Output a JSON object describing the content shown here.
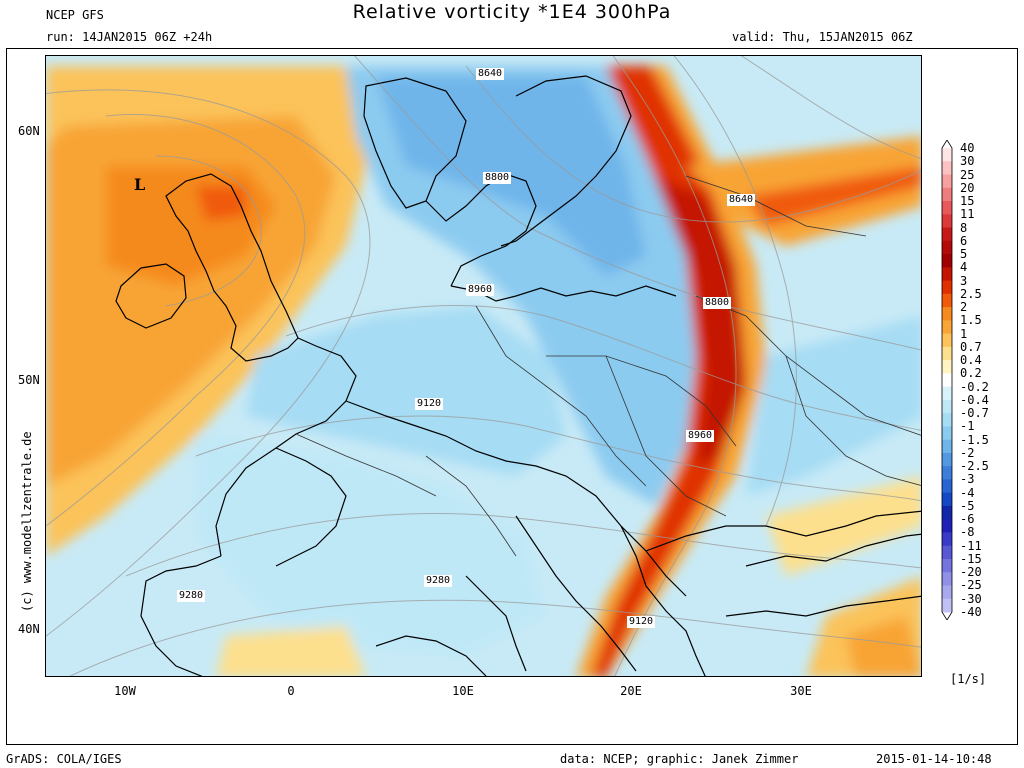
{
  "header": {
    "model": "NCEP GFS",
    "run": "run: 14JAN2015 06Z +24h",
    "title": "Relative vorticity *1E4 300hPa",
    "valid": "valid: Thu, 15JAN2015 06Z"
  },
  "map": {
    "lat_labels": [
      "60N",
      "50N",
      "40N"
    ],
    "lon_labels": [
      "10W",
      "0",
      "10E",
      "20E",
      "30E"
    ],
    "low_marker": "L",
    "contour_labels": [
      "8640",
      "8800",
      "8960",
      "9120",
      "9280",
      "8640",
      "8800",
      "8960",
      "9120",
      "9280"
    ],
    "watermark": "(c) www.modellzentrale.de"
  },
  "legend": {
    "levels": [
      "40",
      "30",
      "25",
      "20",
      "15",
      "11",
      "8",
      "6",
      "5",
      "4",
      "3",
      "2.5",
      "2",
      "1.5",
      "1",
      "0.7",
      "0.4",
      "0.2",
      "-0.2",
      "-0.4",
      "-0.7",
      "-1",
      "-1.5",
      "-2",
      "-2.5",
      "-3",
      "-4",
      "-5",
      "-6",
      "-8",
      "-11",
      "-15",
      "-20",
      "-25",
      "-30",
      "-40"
    ],
    "colors": [
      "#ffe6e6",
      "#fcc2c2",
      "#f7a0a0",
      "#f07d7d",
      "#e85a5a",
      "#dc3a3a",
      "#c81818",
      "#b40a0a",
      "#a00000",
      "#c41400",
      "#e03000",
      "#f05a0a",
      "#f58a1e",
      "#f8a436",
      "#fbc35a",
      "#fde08e",
      "#fff4c2",
      "#ffffff",
      "#d8f2fa",
      "#bfe8f7",
      "#a6dcf4",
      "#8ccbf0",
      "#6fb5ea",
      "#5399e2",
      "#3c7fdb",
      "#2865d2",
      "#1448c4",
      "#1028a8",
      "#2020b8",
      "#3a3ac8",
      "#5858d4",
      "#7474de",
      "#9090e6",
      "#a8a8ee",
      "#c0c0f4"
    ],
    "units": "[1/s]"
  },
  "footer": {
    "left": "GrADS: COLA/IGES",
    "center": "data: NCEP; graphic: Janek Zimmer",
    "right": "2015-01-14-10:48"
  }
}
